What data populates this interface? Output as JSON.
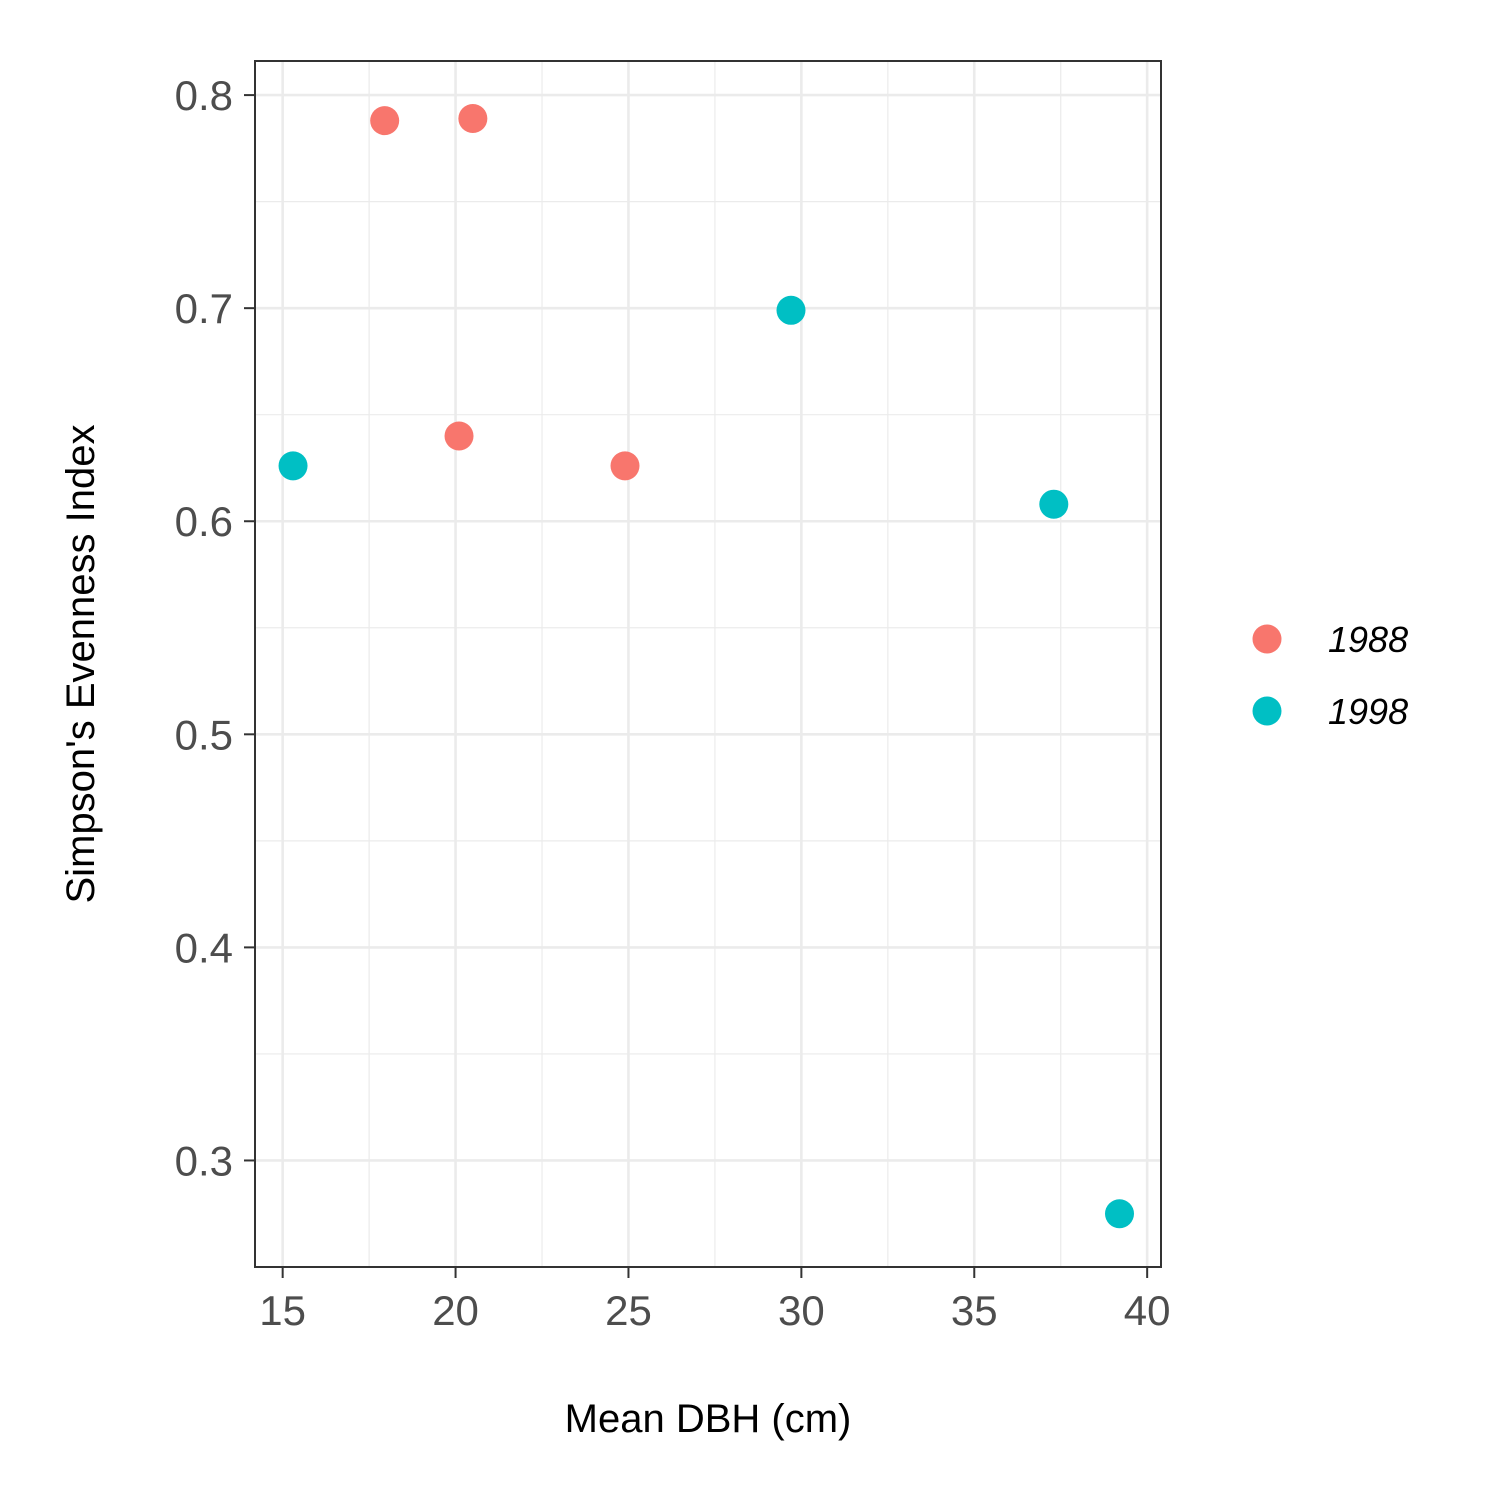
{
  "chart_data": {
    "type": "scatter",
    "title": "",
    "xlabel": "Mean DBH (cm)",
    "ylabel": "Simpson's Evenness Index",
    "xlim": [
      14.2,
      40.4
    ],
    "ylim": [
      0.25,
      0.816
    ],
    "x_ticks": [
      15,
      20,
      25,
      30,
      35,
      40
    ],
    "x_tick_labels": [
      "15",
      "20",
      "25",
      "30",
      "35",
      "40"
    ],
    "y_ticks": [
      0.3,
      0.4,
      0.5,
      0.6,
      0.7,
      0.8
    ],
    "y_tick_labels": [
      "0.3",
      "0.4",
      "0.5",
      "0.6",
      "0.7",
      "0.8"
    ],
    "grid": true,
    "legend_position": "right",
    "series": [
      {
        "name": "1988",
        "color": "#F8766D",
        "points": [
          {
            "x": 17.95,
            "y": 0.788
          },
          {
            "x": 20.5,
            "y": 0.789
          },
          {
            "x": 20.1,
            "y": 0.64
          },
          {
            "x": 24.9,
            "y": 0.626
          }
        ]
      },
      {
        "name": "1998",
        "color": "#00BFC4",
        "points": [
          {
            "x": 15.3,
            "y": 0.626
          },
          {
            "x": 29.7,
            "y": 0.699
          },
          {
            "x": 37.3,
            "y": 0.608
          },
          {
            "x": 39.2,
            "y": 0.275
          }
        ]
      }
    ]
  }
}
